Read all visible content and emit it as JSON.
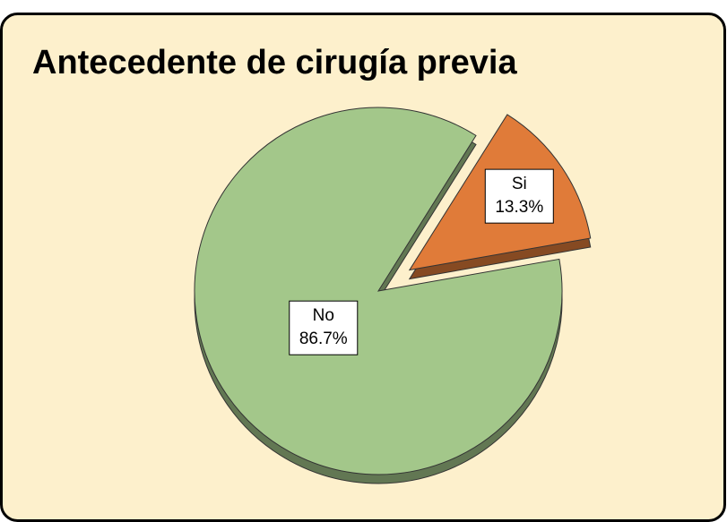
{
  "chart_data": {
    "type": "pie",
    "title": "Antecedente de cirugía previa",
    "categories": [
      "No",
      "Si"
    ],
    "values": [
      86.7,
      13.3
    ],
    "value_labels": [
      "86.7%",
      "13.3%"
    ],
    "colors": [
      "#a3c78a",
      "#e07b39"
    ],
    "exploded": [
      false,
      true
    ]
  }
}
